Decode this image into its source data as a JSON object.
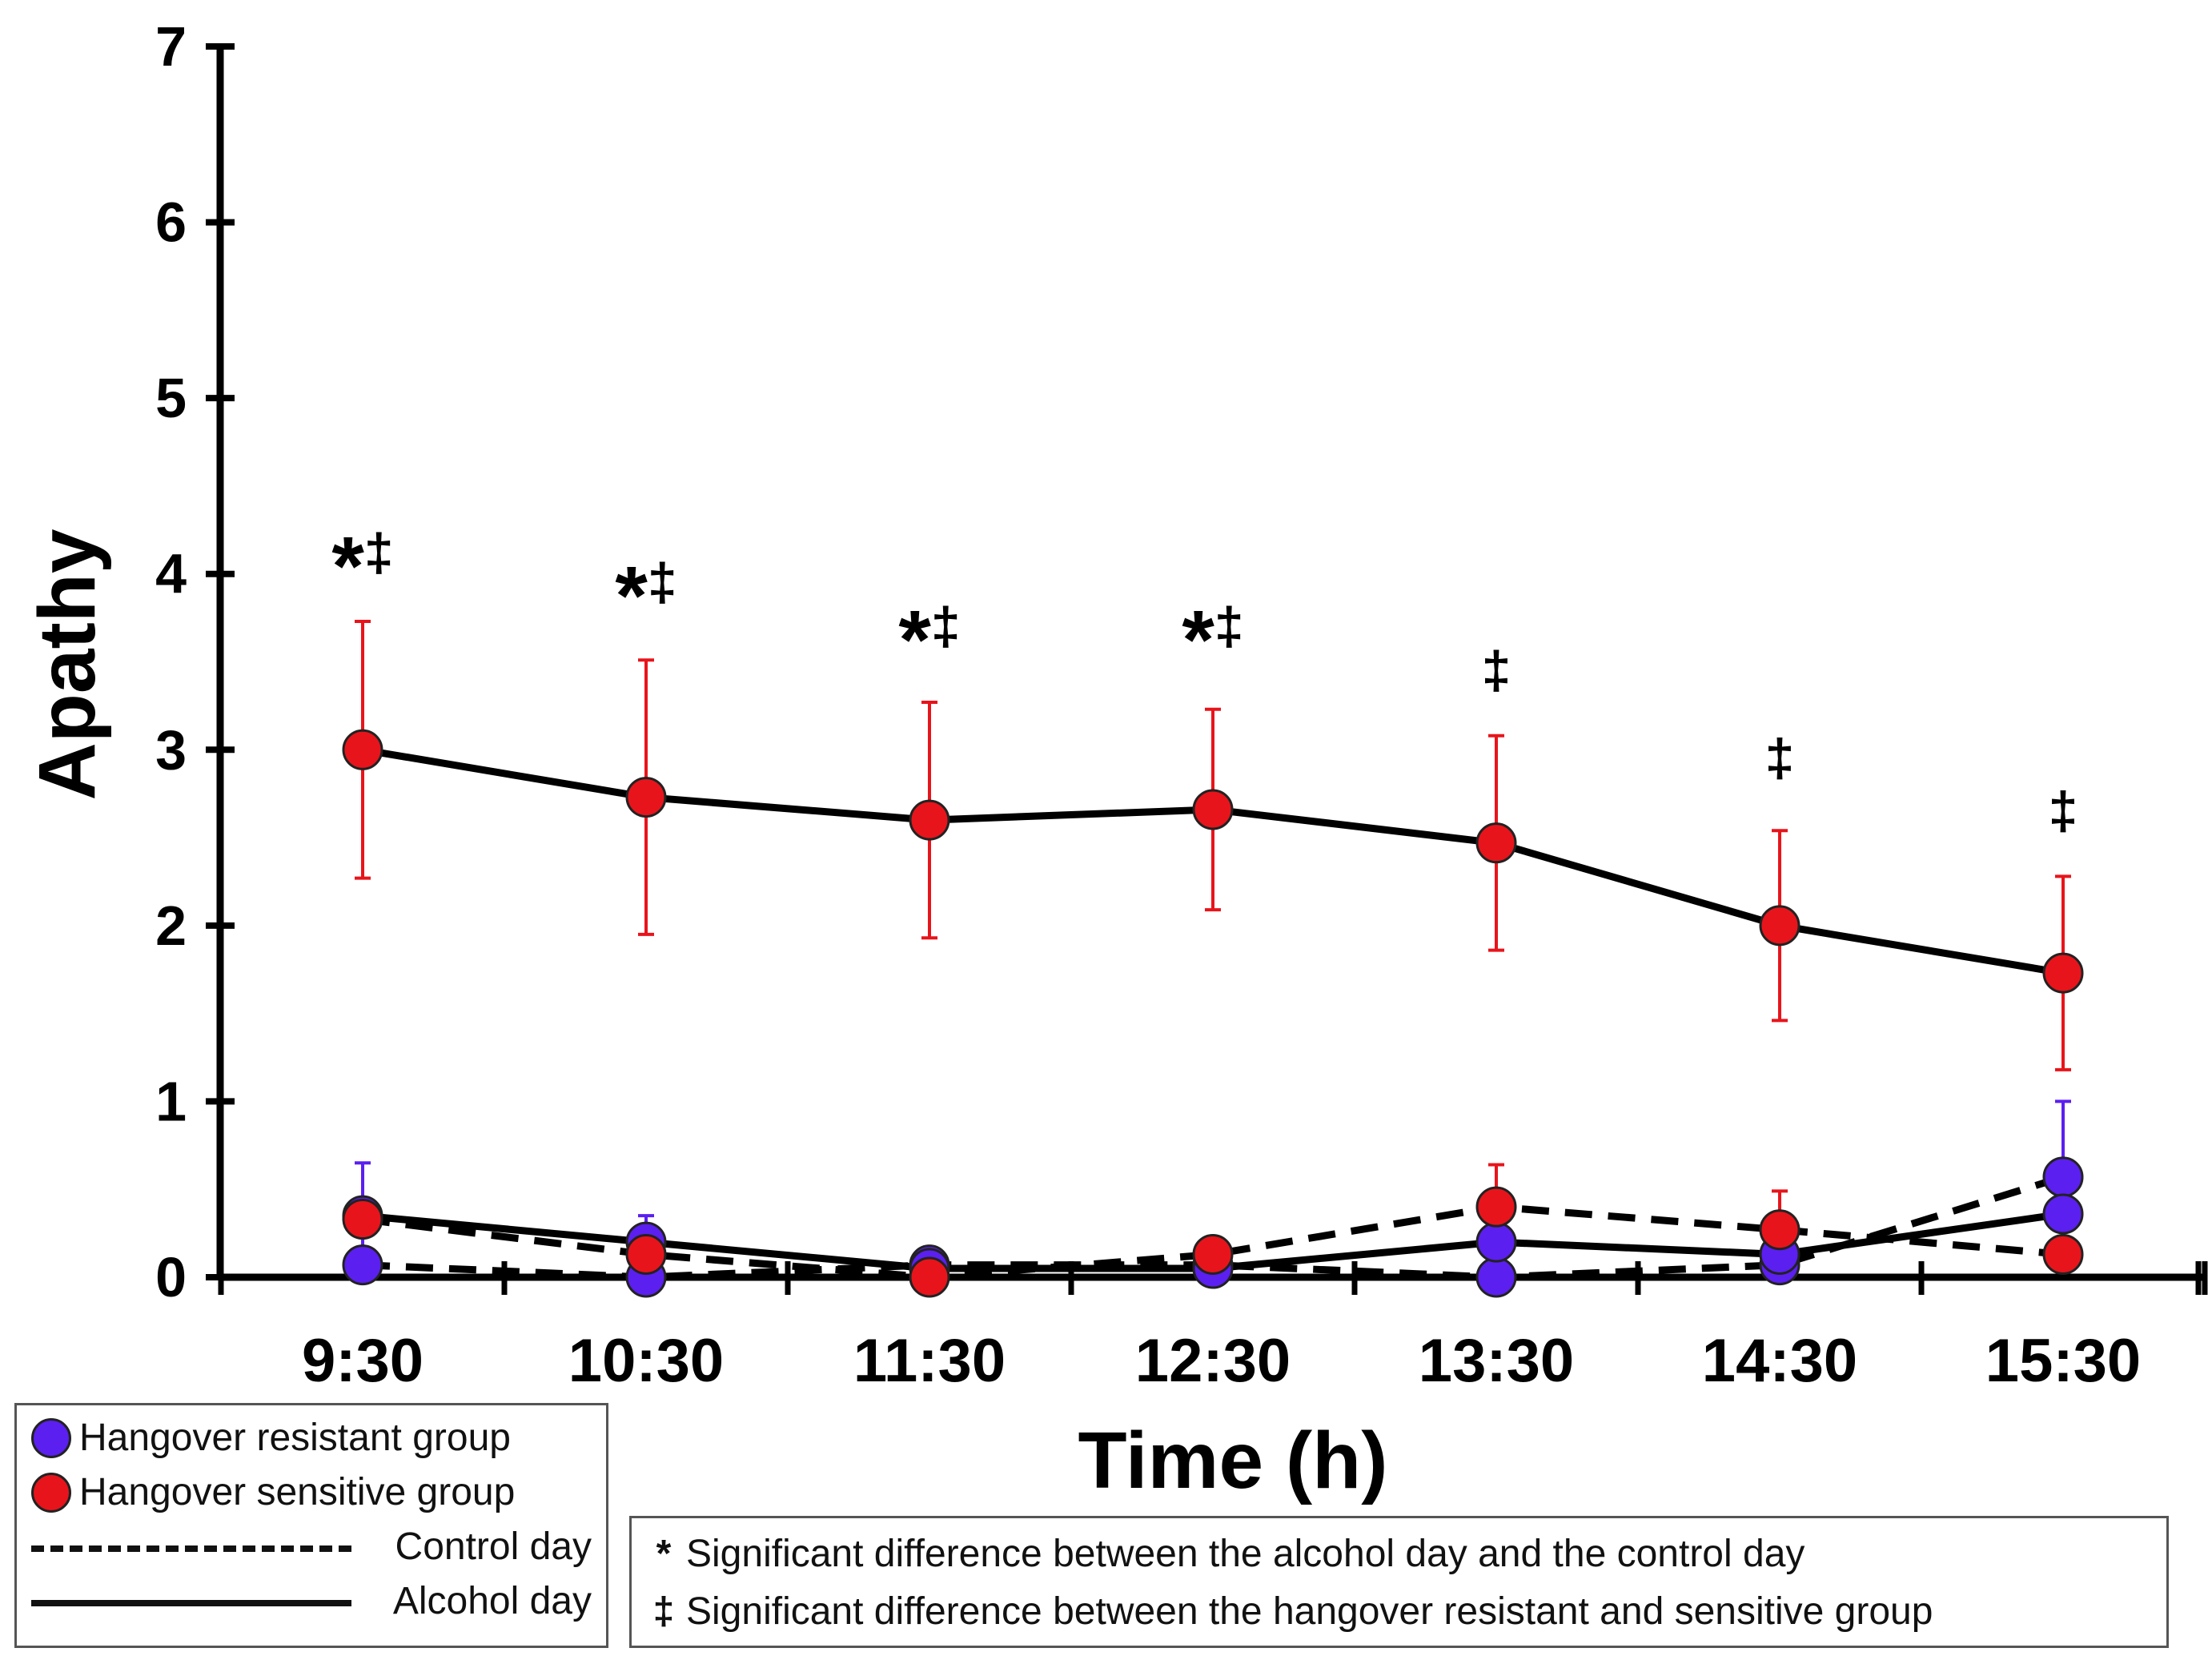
{
  "chart_data": {
    "type": "line",
    "title": "",
    "xlabel": "Time (h)",
    "ylabel": "Apathy",
    "ylim": [
      0,
      7
    ],
    "yticks": [
      0,
      1,
      2,
      3,
      4,
      5,
      6,
      7
    ],
    "categories": [
      "9:30",
      "10:30",
      "11:30",
      "12:30",
      "13:30",
      "14:30",
      "15:30"
    ],
    "grid": false,
    "series": [
      {
        "name": "Hangover sensitive group",
        "day": "Alcohol day",
        "values": [
          3.0,
          2.73,
          2.6,
          2.66,
          2.47,
          2.0,
          1.73
        ],
        "error": [
          0.73,
          0.78,
          0.67,
          0.57,
          0.61,
          0.54,
          0.55
        ],
        "color": "#e8141b",
        "dashed": false
      },
      {
        "name": "Hangover resistant group",
        "day": "Alcohol day",
        "values": [
          0.35,
          0.2,
          0.05,
          0.05,
          0.2,
          0.13,
          0.36
        ],
        "error": [
          0.3,
          0.15,
          0.0,
          0.0,
          0.0,
          0.0,
          0.0
        ],
        "color": "#5b1ff0",
        "dashed": false
      },
      {
        "name": "Hangover sensitive group",
        "day": "Control day",
        "values": [
          0.33,
          0.13,
          0.0,
          0.13,
          0.4,
          0.27,
          0.13
        ],
        "error": [
          0.0,
          0.0,
          0.0,
          0.0,
          0.24,
          0.22,
          0.0
        ],
        "color": "#e8141b",
        "dashed": true
      },
      {
        "name": "Hangover resistant group",
        "day": "Control day",
        "values": [
          0.07,
          0.0,
          0.07,
          0.07,
          0.0,
          0.07,
          0.57
        ],
        "error": [
          0.0,
          0.0,
          0.0,
          0.0,
          0.0,
          0.0,
          0.43
        ],
        "color": "#5b1ff0",
        "dashed": true
      }
    ],
    "annotations": [
      {
        "x": "9:30",
        "text": "*‡",
        "y": 4.02
      },
      {
        "x": "10:30",
        "text": "*‡",
        "y": 3.85
      },
      {
        "x": "11:30",
        "text": "*‡",
        "y": 3.6
      },
      {
        "x": "12:30",
        "text": "*‡",
        "y": 3.6
      },
      {
        "x": "13:30",
        "text": "‡",
        "y": 3.35
      },
      {
        "x": "14:30",
        "text": "‡",
        "y": 2.85
      },
      {
        "x": "15:30",
        "text": "‡",
        "y": 2.55
      }
    ]
  },
  "legend": {
    "resistant": "Hangover resistant group",
    "sensitive": "Hangover sensitive group",
    "control": "Control day",
    "alcohol": "Alcohol day",
    "resistant_color": "#5b1ff0",
    "sensitive_color": "#e8141b"
  },
  "notes": {
    "star_symbol": "*",
    "star_text": "Significant difference between the alcohol day and the control day",
    "dagger_symbol": "‡",
    "dagger_text": "Significant difference between the hangover resistant and sensitive group"
  }
}
